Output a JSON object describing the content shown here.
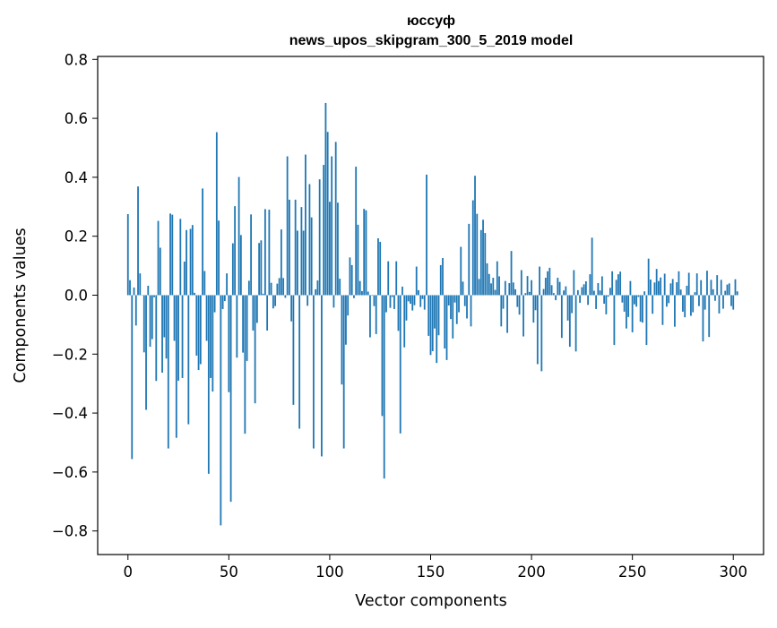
{
  "chart_data": {
    "type": "bar",
    "title_line1": "юссуф",
    "title_line2": "news_upos_skipgram_300_5_2019 model",
    "xlabel": "Vector components",
    "ylabel": "Components values",
    "xlim": [
      -15,
      315
    ],
    "ylim": [
      -0.88,
      0.81
    ],
    "x_ticks": [
      0,
      50,
      100,
      150,
      200,
      250,
      300
    ],
    "x_tick_labels": [
      "0",
      "50",
      "100",
      "150",
      "200",
      "250",
      "300"
    ],
    "y_ticks": [
      -0.8,
      -0.6,
      -0.4,
      -0.2,
      0.0,
      0.2,
      0.4,
      0.6,
      0.8
    ],
    "y_tick_labels": [
      "−0.8",
      "−0.6",
      "−0.4",
      "−0.2",
      "0.0",
      "0.2",
      "0.4",
      "0.6",
      "0.8"
    ],
    "bar_color": "#1f77b4",
    "grid": false,
    "legend": "none",
    "values": [
      0.275,
      0.051,
      -0.556,
      0.026,
      -0.103,
      0.369,
      0.074,
      -0.001,
      -0.194,
      -0.389,
      0.032,
      -0.175,
      -0.149,
      -0.007,
      -0.291,
      0.252,
      0.161,
      -0.263,
      -0.143,
      -0.215,
      -0.52,
      0.277,
      0.273,
      -0.155,
      -0.484,
      -0.29,
      0.259,
      -0.281,
      0.114,
      0.221,
      -0.438,
      0.225,
      0.238,
      0.008,
      -0.205,
      -0.254,
      -0.234,
      0.362,
      0.082,
      -0.155,
      -0.606,
      -0.281,
      -0.327,
      -0.058,
      0.553,
      0.253,
      -0.781,
      -0.047,
      -0.02,
      0.074,
      -0.329,
      -0.701,
      0.176,
      0.302,
      -0.212,
      0.401,
      0.204,
      -0.195,
      -0.47,
      -0.223,
      0.049,
      0.274,
      -0.12,
      -0.367,
      -0.094,
      0.177,
      0.186,
      0.005,
      0.292,
      -0.12,
      0.29,
      0.042,
      -0.045,
      -0.037,
      0.039,
      0.058,
      0.223,
      0.058,
      -0.009,
      0.471,
      0.324,
      -0.089,
      -0.372,
      0.324,
      0.219,
      -0.453,
      0.299,
      0.219,
      0.477,
      -0.036,
      0.377,
      0.264,
      -0.52,
      0.02,
      0.05,
      0.393,
      -0.547,
      0.442,
      0.652,
      0.554,
      0.317,
      0.471,
      -0.042,
      0.52,
      0.314,
      0.056,
      -0.303,
      -0.52,
      -0.168,
      -0.069,
      0.128,
      0.102,
      -0.01,
      0.436,
      0.239,
      0.048,
      0.014,
      0.293,
      0.288,
      0.012,
      -0.143,
      -0.002,
      -0.037,
      -0.132,
      0.193,
      0.181,
      -0.41,
      -0.622,
      -0.058,
      0.115,
      -0.043,
      -0.006,
      -0.047,
      0.115,
      -0.121,
      -0.469,
      0.029,
      -0.177,
      -0.086,
      -0.021,
      -0.029,
      -0.052,
      -0.034,
      0.097,
      0.017,
      -0.04,
      -0.013,
      -0.049,
      0.409,
      -0.138,
      -0.203,
      -0.19,
      -0.113,
      -0.23,
      -0.136,
      0.102,
      0.126,
      -0.181,
      -0.22,
      -0.035,
      -0.081,
      -0.147,
      -0.025,
      -0.098,
      -0.058,
      0.164,
      0.046,
      -0.037,
      -0.079,
      0.242,
      -0.106,
      0.322,
      0.405,
      0.276,
      0.055,
      0.221,
      0.256,
      0.211,
      0.108,
      0.072,
      0.04,
      0.059,
      0.018,
      0.115,
      0.064,
      -0.106,
      -0.046,
      0.048,
      -0.128,
      0.041,
      0.15,
      0.043,
      0.02,
      -0.04,
      -0.066,
      0.085,
      -0.14,
      0.007,
      0.065,
      0.011,
      0.051,
      -0.093,
      -0.051,
      -0.234,
      0.097,
      -0.258,
      0.021,
      0.059,
      0.081,
      0.093,
      0.034,
      0.007,
      -0.017,
      0.059,
      0.045,
      -0.145,
      0.016,
      0.03,
      -0.086,
      -0.175,
      -0.061,
      0.085,
      -0.191,
      0.017,
      -0.026,
      0.027,
      0.037,
      0.047,
      -0.033,
      0.071,
      0.195,
      0.015,
      -0.047,
      0.041,
      0.016,
      0.064,
      -0.029,
      -0.065,
      -0.005,
      0.025,
      0.081,
      -0.169,
      0.052,
      0.071,
      0.08,
      -0.025,
      -0.056,
      -0.113,
      -0.074,
      0.048,
      -0.126,
      -0.031,
      -0.039,
      -0.006,
      -0.09,
      -0.093,
      0.013,
      -0.169,
      0.124,
      0.053,
      -0.063,
      0.043,
      0.089,
      0.048,
      0.06,
      -0.101,
      0.073,
      -0.039,
      -0.027,
      0.04,
      0.055,
      -0.107,
      0.044,
      0.081,
      0.019,
      -0.056,
      -0.075,
      0.032,
      0.076,
      -0.07,
      -0.058,
      0.01,
      0.074,
      -0.037,
      0.051,
      -0.157,
      -0.049,
      0.083,
      -0.142,
      0.052,
      0.02,
      -0.019,
      0.068,
      -0.062,
      0.052,
      -0.046,
      0.015,
      0.036,
      0.04,
      -0.037,
      -0.049,
      0.054,
      0.013
    ]
  }
}
